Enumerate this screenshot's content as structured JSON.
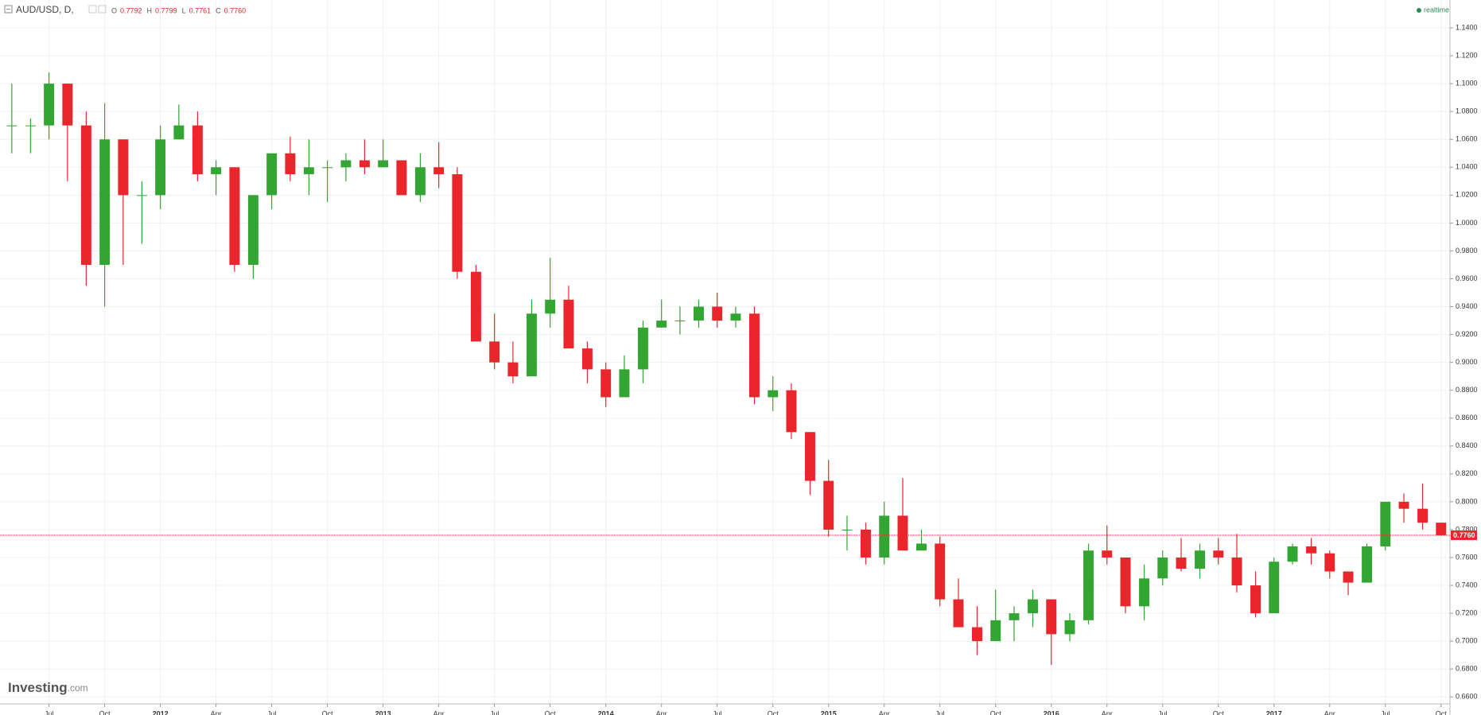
{
  "chart_data": {
    "type": "candlestick",
    "title": "AUD/USD, D,",
    "ohlc_legend": [
      {
        "key": "O",
        "text": "0.7792"
      },
      {
        "key": "H",
        "text": "0.7799"
      },
      {
        "key": "L",
        "text": "0.7761"
      },
      {
        "key": "C",
        "text": "0.7760"
      }
    ],
    "status": "realtime",
    "brand": "Investing",
    "brand_suffix": ".com",
    "up_color": "#33a532",
    "down_color": "#e8262b",
    "grid": true,
    "x": [
      2011.333,
      2011.417,
      2011.5,
      2011.583,
      2011.667,
      2011.75,
      2011.833,
      2011.917,
      2012.0,
      2012.083,
      2012.167,
      2012.25,
      2012.333,
      2012.417,
      2012.5,
      2012.583,
      2012.667,
      2012.75,
      2012.833,
      2012.917,
      2013.0,
      2013.083,
      2013.167,
      2013.25,
      2013.333,
      2013.417,
      2013.5,
      2013.583,
      2013.667,
      2013.75,
      2013.833,
      2013.917,
      2014.0,
      2014.083,
      2014.167,
      2014.25,
      2014.333,
      2014.417,
      2014.5,
      2014.583,
      2014.667,
      2014.75,
      2014.833,
      2014.917,
      2015.0,
      2015.083,
      2015.167,
      2015.25,
      2015.333,
      2015.417,
      2015.5,
      2015.583,
      2015.667,
      2015.75,
      2015.833,
      2015.917,
      2016.0,
      2016.083,
      2016.167,
      2016.25,
      2016.333,
      2016.417,
      2016.5,
      2016.583,
      2016.667,
      2016.75,
      2016.833,
      2016.917,
      2017.0,
      2017.083,
      2017.167,
      2017.25,
      2017.333,
      2017.417,
      2017.5,
      2017.583,
      2017.667,
      2017.75
    ],
    "open": [
      1.07,
      1.07,
      1.07,
      1.1,
      1.07,
      0.97,
      1.06,
      1.02,
      1.02,
      1.06,
      1.07,
      1.035,
      1.04,
      0.97,
      1.02,
      1.05,
      1.035,
      1.04,
      1.04,
      1.045,
      1.04,
      1.045,
      1.02,
      1.04,
      1.035,
      0.965,
      0.915,
      0.9,
      0.89,
      0.935,
      0.945,
      0.91,
      0.895,
      0.875,
      0.895,
      0.925,
      0.93,
      0.93,
      0.94,
      0.93,
      0.935,
      0.875,
      0.88,
      0.85,
      0.815,
      0.78,
      0.78,
      0.76,
      0.79,
      0.765,
      0.77,
      0.73,
      0.71,
      0.7,
      0.715,
      0.72,
      0.73,
      0.705,
      0.715,
      0.765,
      0.76,
      0.725,
      0.745,
      0.76,
      0.752,
      0.765,
      0.76,
      0.74,
      0.72,
      0.757,
      0.768,
      0.763,
      0.75,
      0.742,
      0.768,
      0.8,
      0.795,
      0.785
    ],
    "high": [
      1.1,
      1.075,
      1.108,
      1.1,
      1.08,
      1.086,
      1.06,
      1.03,
      1.07,
      1.085,
      1.08,
      1.045,
      1.04,
      1.02,
      1.05,
      1.062,
      1.06,
      1.045,
      1.05,
      1.06,
      1.06,
      1.045,
      1.05,
      1.058,
      1.04,
      0.97,
      0.935,
      0.915,
      0.945,
      0.975,
      0.955,
      0.915,
      0.9,
      0.905,
      0.93,
      0.945,
      0.94,
      0.945,
      0.95,
      0.94,
      0.94,
      0.89,
      0.885,
      0.85,
      0.83,
      0.79,
      0.785,
      0.8,
      0.817,
      0.78,
      0.775,
      0.745,
      0.725,
      0.737,
      0.725,
      0.737,
      0.73,
      0.72,
      0.77,
      0.783,
      0.76,
      0.755,
      0.765,
      0.774,
      0.77,
      0.774,
      0.777,
      0.75,
      0.76,
      0.77,
      0.774,
      0.765,
      0.75,
      0.77,
      0.8,
      0.806,
      0.813,
      0.785
    ],
    "low": [
      1.05,
      1.05,
      1.06,
      1.03,
      0.955,
      0.94,
      0.97,
      0.985,
      1.01,
      1.06,
      1.03,
      1.02,
      0.965,
      0.96,
      1.01,
      1.03,
      1.02,
      1.015,
      1.03,
      1.035,
      1.04,
      1.02,
      1.015,
      1.025,
      0.96,
      0.915,
      0.895,
      0.885,
      0.89,
      0.925,
      0.91,
      0.885,
      0.868,
      0.875,
      0.885,
      0.925,
      0.92,
      0.925,
      0.925,
      0.925,
      0.87,
      0.865,
      0.845,
      0.805,
      0.775,
      0.765,
      0.755,
      0.755,
      0.765,
      0.765,
      0.725,
      0.71,
      0.69,
      0.7,
      0.7,
      0.71,
      0.683,
      0.7,
      0.712,
      0.755,
      0.72,
      0.715,
      0.74,
      0.75,
      0.745,
      0.755,
      0.735,
      0.717,
      0.72,
      0.755,
      0.755,
      0.745,
      0.733,
      0.742,
      0.765,
      0.785,
      0.78,
      0.776
    ],
    "close": [
      1.07,
      1.07,
      1.1,
      1.07,
      0.97,
      1.06,
      1.02,
      1.02,
      1.06,
      1.07,
      1.035,
      1.04,
      0.97,
      1.02,
      1.05,
      1.035,
      1.04,
      1.04,
      1.045,
      1.04,
      1.045,
      1.02,
      1.04,
      1.035,
      0.965,
      0.915,
      0.9,
      0.89,
      0.935,
      0.945,
      0.91,
      0.895,
      0.875,
      0.895,
      0.925,
      0.93,
      0.93,
      0.94,
      0.93,
      0.935,
      0.875,
      0.88,
      0.85,
      0.815,
      0.78,
      0.78,
      0.76,
      0.79,
      0.765,
      0.77,
      0.73,
      0.71,
      0.7,
      0.715,
      0.72,
      0.73,
      0.705,
      0.715,
      0.765,
      0.76,
      0.725,
      0.745,
      0.76,
      0.752,
      0.765,
      0.76,
      0.74,
      0.72,
      0.757,
      0.768,
      0.763,
      0.75,
      0.742,
      0.768,
      0.8,
      0.795,
      0.785,
      0.776
    ],
    "xlim": [
      2011.28,
      2017.79
    ],
    "xticks": [
      {
        "value": 2011.5,
        "label": "Jul"
      },
      {
        "value": 2011.75,
        "label": "Oct"
      },
      2012,
      {
        "value": 2012.25,
        "label": "Apr"
      },
      {
        "value": 2012.5,
        "label": "Jul"
      },
      {
        "value": 2012.75,
        "label": "Oct"
      },
      2013,
      {
        "value": 2013.25,
        "label": "Apr"
      },
      {
        "value": 2013.5,
        "label": "Jul"
      },
      {
        "value": 2013.75,
        "label": "Oct"
      },
      2014,
      {
        "value": 2014.25,
        "label": "Apr"
      },
      {
        "value": 2014.5,
        "label": "Jul"
      },
      {
        "value": 2014.75,
        "label": "Oct"
      },
      2015,
      {
        "value": 2015.25,
        "label": "Apr"
      },
      {
        "value": 2015.5,
        "label": "Jul"
      },
      {
        "value": 2015.75,
        "label": "Oct"
      },
      2016,
      {
        "value": 2016.25,
        "label": "Apr"
      },
      {
        "value": 2016.5,
        "label": "Jul"
      },
      {
        "value": 2016.75,
        "label": "Oct"
      },
      2017,
      {
        "value": 2017.25,
        "label": "Apr"
      },
      {
        "value": 2017.5,
        "label": "Jul"
      },
      {
        "value": 2017.75,
        "label": "Oct"
      }
    ],
    "ylim": [
      0.655,
      1.16
    ],
    "yticks": [
      {
        "value": 0.66,
        "label": "0.6600"
      },
      {
        "value": 0.68,
        "label": "0.6800"
      },
      {
        "value": 0.7,
        "label": "0.7000"
      },
      {
        "value": 0.72,
        "label": "0.7200"
      },
      {
        "value": 0.74,
        "label": "0.7400"
      },
      {
        "value": 0.76,
        "label": "0.7600"
      },
      {
        "value": 0.78,
        "label": "0.7800"
      },
      {
        "value": 0.8,
        "label": "0.8000"
      },
      {
        "value": 0.82,
        "label": "0.8200"
      },
      {
        "value": 0.84,
        "label": "0.8400"
      },
      {
        "value": 0.86,
        "label": "0.8600"
      },
      {
        "value": 0.88,
        "label": "0.8800"
      },
      {
        "value": 0.9,
        "label": "0.9000"
      },
      {
        "value": 0.92,
        "label": "0.9200"
      },
      {
        "value": 0.94,
        "label": "0.9400"
      },
      {
        "value": 0.96,
        "label": "0.9600"
      },
      {
        "value": 0.98,
        "label": "0.9800"
      },
      {
        "value": 1.0,
        "label": "1.0000"
      },
      {
        "value": 1.02,
        "label": "1.0200"
      },
      {
        "value": 1.04,
        "label": "1.0400"
      },
      {
        "value": 1.06,
        "label": "1.0600"
      },
      {
        "value": 1.08,
        "label": "1.0800"
      },
      {
        "value": 1.1,
        "label": "1.1000"
      },
      {
        "value": 1.12,
        "label": "1.1200"
      },
      {
        "value": 1.14,
        "label": "1.1400"
      }
    ],
    "last_price": {
      "value": 0.776,
      "label": "0.7760"
    }
  }
}
